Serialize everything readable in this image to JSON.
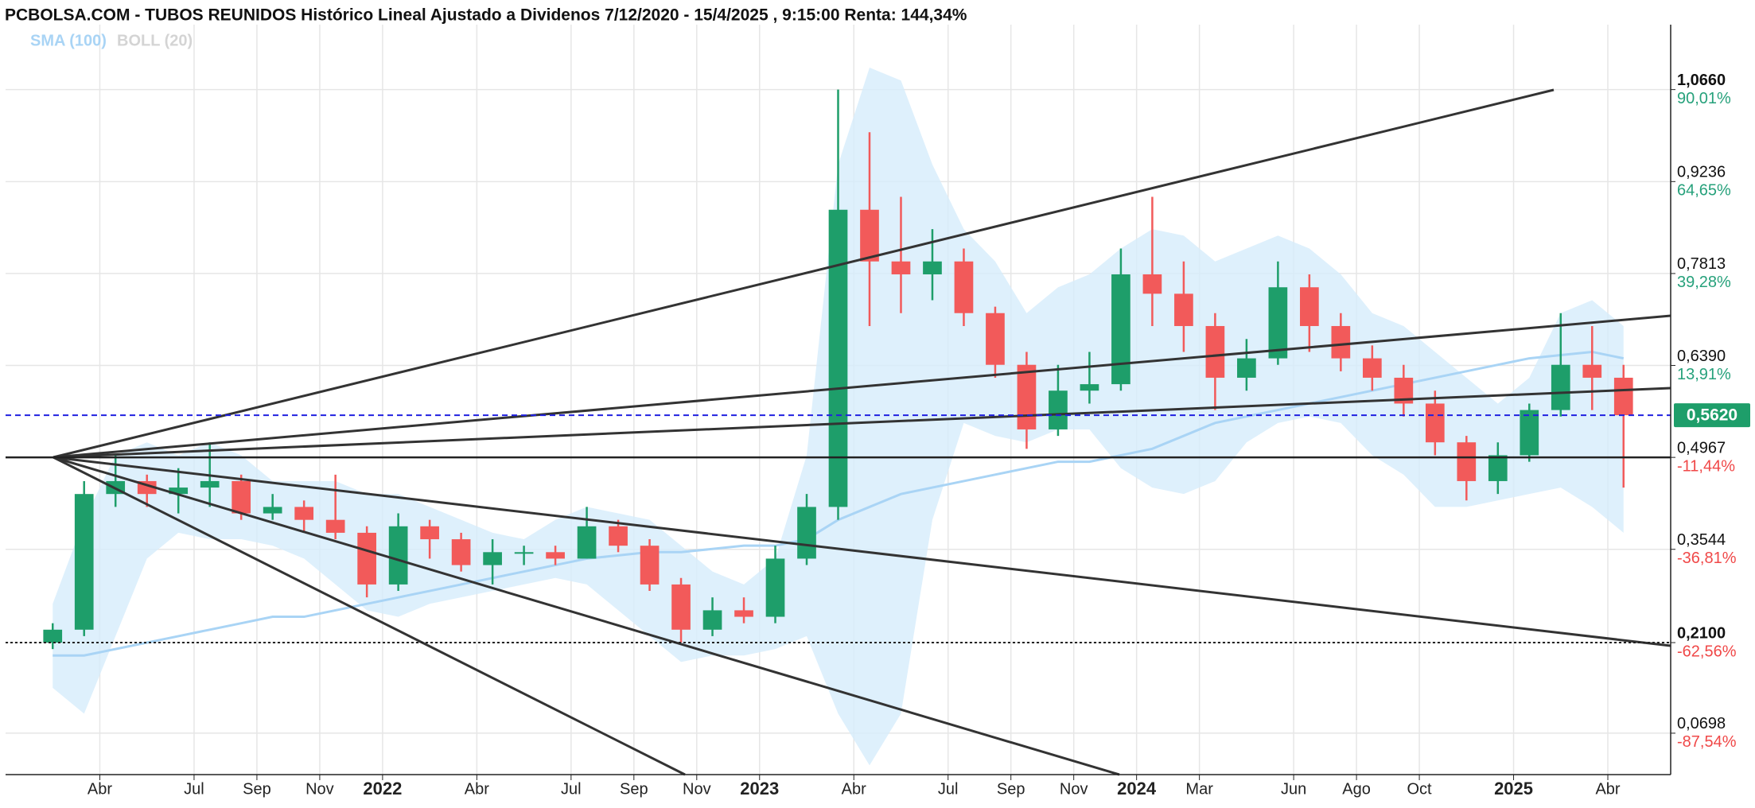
{
  "chart_data": {
    "type": "candlestick",
    "title": "PCBOLSA.COM - TUBOS REUNIDOS Histórico Lineal Ajustado a Dividenos 7/12/2020 - 15/4/2025 , 9:15:00 Renta: 144,34%",
    "x": [
      "2021-02",
      "2021-03",
      "2021-04",
      "2021-05",
      "2021-06",
      "2021-07",
      "2021-08",
      "2021-09",
      "2021-10",
      "2021-11",
      "2021-12",
      "2022-01",
      "2022-02",
      "2022-03",
      "2022-04",
      "2022-05",
      "2022-06",
      "2022-07",
      "2022-08",
      "2022-09",
      "2022-10",
      "2022-11",
      "2022-12",
      "2023-01",
      "2023-02",
      "2023-03",
      "2023-04",
      "2023-05",
      "2023-06",
      "2023-07",
      "2023-08",
      "2023-09",
      "2023-10",
      "2023-11",
      "2023-12",
      "2024-01",
      "2024-02",
      "2024-03",
      "2024-04",
      "2024-05",
      "2024-06",
      "2024-07",
      "2024-08",
      "2024-09",
      "2024-10",
      "2024-11",
      "2024-12",
      "2025-01",
      "2025-02",
      "2025-03",
      "2025-04"
    ],
    "open": [
      0.21,
      0.23,
      0.44,
      0.46,
      0.44,
      0.45,
      0.46,
      0.41,
      0.42,
      0.4,
      0.38,
      0.3,
      0.39,
      0.37,
      0.33,
      0.35,
      0.35,
      0.34,
      0.39,
      0.36,
      0.3,
      0.23,
      0.26,
      0.25,
      0.34,
      0.42,
      0.88,
      0.8,
      0.78,
      0.8,
      0.72,
      0.64,
      0.54,
      0.6,
      0.61,
      0.78,
      0.75,
      0.7,
      0.62,
      0.65,
      0.76,
      0.7,
      0.65,
      0.62,
      0.58,
      0.52,
      0.46,
      0.5,
      0.57,
      0.64,
      0.62
    ],
    "high": [
      0.24,
      0.46,
      0.5,
      0.47,
      0.48,
      0.52,
      0.47,
      0.44,
      0.43,
      0.47,
      0.39,
      0.41,
      0.4,
      0.38,
      0.37,
      0.36,
      0.36,
      0.42,
      0.4,
      0.37,
      0.31,
      0.28,
      0.28,
      0.36,
      0.44,
      1.066,
      1.0,
      0.9,
      0.85,
      0.82,
      0.73,
      0.66,
      0.64,
      0.66,
      0.82,
      0.9,
      0.8,
      0.72,
      0.68,
      0.8,
      0.78,
      0.72,
      0.67,
      0.64,
      0.6,
      0.53,
      0.52,
      0.58,
      0.72,
      0.7,
      0.64
    ],
    "low": [
      0.2,
      0.22,
      0.42,
      0.42,
      0.41,
      0.42,
      0.4,
      0.4,
      0.38,
      0.37,
      0.28,
      0.29,
      0.34,
      0.32,
      0.3,
      0.33,
      0.33,
      0.34,
      0.35,
      0.29,
      0.21,
      0.22,
      0.24,
      0.24,
      0.33,
      0.4,
      0.7,
      0.72,
      0.74,
      0.7,
      0.62,
      0.51,
      0.53,
      0.58,
      0.6,
      0.7,
      0.66,
      0.57,
      0.6,
      0.64,
      0.66,
      0.63,
      0.6,
      0.56,
      0.5,
      0.43,
      0.44,
      0.49,
      0.56,
      0.57,
      0.45
    ],
    "close": [
      0.23,
      0.44,
      0.46,
      0.44,
      0.45,
      0.46,
      0.41,
      0.42,
      0.4,
      0.38,
      0.3,
      0.39,
      0.37,
      0.33,
      0.35,
      0.35,
      0.34,
      0.39,
      0.36,
      0.3,
      0.23,
      0.26,
      0.25,
      0.34,
      0.42,
      0.88,
      0.8,
      0.78,
      0.8,
      0.72,
      0.64,
      0.54,
      0.6,
      0.61,
      0.78,
      0.75,
      0.7,
      0.62,
      0.65,
      0.76,
      0.7,
      0.65,
      0.62,
      0.58,
      0.52,
      0.46,
      0.5,
      0.57,
      0.64,
      0.62,
      0.562
    ],
    "up_color": "#1e9e6a",
    "down_color": "#f25a5a",
    "sma": {
      "name": "SMA (100)",
      "color": "#a9d4f5",
      "values": [
        0.19,
        0.19,
        0.2,
        0.21,
        0.22,
        0.23,
        0.24,
        0.25,
        0.25,
        0.26,
        0.27,
        0.28,
        0.29,
        0.3,
        0.31,
        0.32,
        0.33,
        0.34,
        0.345,
        0.35,
        0.35,
        0.355,
        0.36,
        0.36,
        0.37,
        0.4,
        0.42,
        0.44,
        0.45,
        0.46,
        0.47,
        0.48,
        0.49,
        0.49,
        0.5,
        0.51,
        0.53,
        0.55,
        0.56,
        0.57,
        0.58,
        0.59,
        0.6,
        0.61,
        0.62,
        0.63,
        0.64,
        0.65,
        0.655,
        0.66,
        0.65
      ]
    },
    "boll": {
      "name": "BOLL (20)",
      "color": "#d6ecfb",
      "legend_color": "#d4d4d4",
      "upper": [
        0.27,
        0.4,
        0.5,
        0.52,
        0.5,
        0.52,
        0.5,
        0.46,
        0.46,
        0.46,
        0.44,
        0.44,
        0.42,
        0.4,
        0.38,
        0.37,
        0.4,
        0.42,
        0.41,
        0.4,
        0.36,
        0.32,
        0.3,
        0.34,
        0.5,
        0.95,
        1.1,
        1.08,
        0.95,
        0.85,
        0.8,
        0.72,
        0.76,
        0.78,
        0.82,
        0.85,
        0.84,
        0.8,
        0.82,
        0.84,
        0.82,
        0.78,
        0.72,
        0.7,
        0.66,
        0.62,
        0.58,
        0.62,
        0.72,
        0.74,
        0.7
      ],
      "lower": [
        0.14,
        0.1,
        0.22,
        0.34,
        0.38,
        0.37,
        0.37,
        0.36,
        0.34,
        0.3,
        0.26,
        0.25,
        0.27,
        0.28,
        0.29,
        0.3,
        0.31,
        0.3,
        0.26,
        0.22,
        0.18,
        0.19,
        0.19,
        0.2,
        0.22,
        0.1,
        0.02,
        0.1,
        0.4,
        0.55,
        0.53,
        0.52,
        0.54,
        0.54,
        0.48,
        0.45,
        0.44,
        0.46,
        0.52,
        0.55,
        0.56,
        0.55,
        0.5,
        0.47,
        0.42,
        0.42,
        0.43,
        0.44,
        0.45,
        0.42,
        0.38
      ]
    },
    "xlim": [
      "2021-01",
      "2025-06"
    ],
    "xticks": [
      {
        "value": "2021-04",
        "label": "Abr"
      },
      {
        "value": "2021-07",
        "label": "Jul"
      },
      {
        "value": "2021-09",
        "label": "Sep"
      },
      {
        "value": "2021-11",
        "label": "Nov"
      },
      {
        "value": "2022-01",
        "label": "2022"
      },
      {
        "value": "2022-04",
        "label": "Abr"
      },
      {
        "value": "2022-07",
        "label": "Jul"
      },
      {
        "value": "2022-09",
        "label": "Sep"
      },
      {
        "value": "2022-11",
        "label": "Nov"
      },
      {
        "value": "2023-01",
        "label": "2023"
      },
      {
        "value": "2023-04",
        "label": "Abr"
      },
      {
        "value": "2023-07",
        "label": "Jul"
      },
      {
        "value": "2023-09",
        "label": "Sep"
      },
      {
        "value": "2023-11",
        "label": "Nov"
      },
      {
        "value": "2024-01",
        "label": "2024"
      },
      {
        "value": "2024-03",
        "label": "Mar"
      },
      {
        "value": "2024-06",
        "label": "Jun"
      },
      {
        "value": "2024-08",
        "label": "Ago"
      },
      {
        "value": "2024-10",
        "label": "Oct"
      },
      {
        "value": "2025-01",
        "label": "2025"
      },
      {
        "value": "2025-04",
        "label": "Abr"
      }
    ],
    "ylim": [
      0.0057,
      1.1665
    ],
    "yticks": [
      {
        "value": 1.066,
        "label": "1,0660"
      },
      {
        "value": 0.9236,
        "label": "0,9236"
      },
      {
        "value": 0.7813,
        "label": "0,7813"
      },
      {
        "value": 0.639,
        "label": "0,6390"
      },
      {
        "value": 0.4967,
        "label": "0,4967"
      },
      {
        "value": 0.3544,
        "label": "0,3544"
      },
      {
        "value": 0.21,
        "label": "0,2100"
      },
      {
        "value": 0.0698,
        "label": "0,0698"
      }
    ],
    "ytick_pct": [
      {
        "value": 1.066,
        "label": "90,01%"
      },
      {
        "value": 0.9236,
        "label": "64,65%"
      },
      {
        "value": 0.7813,
        "label": "39,28%"
      },
      {
        "value": 0.639,
        "label": "13,91%"
      },
      {
        "value": 0.4967,
        "label": "-11,44%"
      },
      {
        "value": 0.3544,
        "label": "-36,81%"
      },
      {
        "value": 0.21,
        "label": "-62,56%"
      },
      {
        "value": 0.0698,
        "label": "-87,54%"
      }
    ],
    "current_price": {
      "value": 0.562,
      "label": "0,5620",
      "color": "#1e9e6a"
    },
    "levels": [
      0.4967,
      0.21
    ],
    "grid": true
  }
}
